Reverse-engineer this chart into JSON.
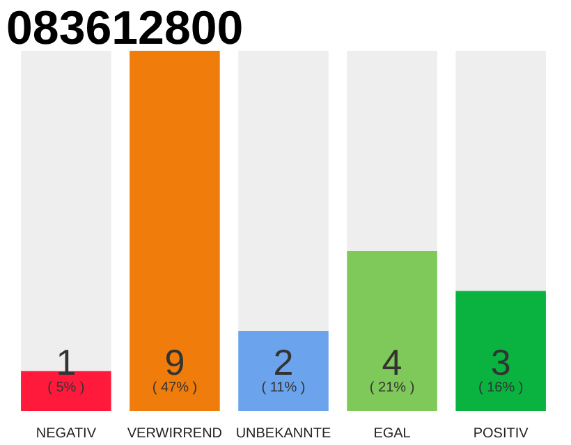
{
  "chart_data": {
    "type": "bar",
    "title": "083612800",
    "stacked": true,
    "categories": [
      "NEGATIV",
      "VERWIRREND",
      "UNBEKANNTE",
      "EGAL",
      "POSITIV"
    ],
    "series": [
      {
        "colors": [
          "#ff1a3c",
          "#f07c0c",
          "#6ba3ec",
          "#7ec95a",
          "#0ab240"
        ],
        "values": [
          1,
          9,
          2,
          4,
          3
        ],
        "value_labels": [
          "1",
          "9",
          "2",
          "4",
          "3"
        ]
      },
      {
        "color": "#eeeeee",
        "values": [
          8,
          0,
          7,
          5,
          6
        ]
      }
    ],
    "annotations": [
      {
        "text": "( 5% )",
        "x": "NEGATIV",
        "y": 0
      },
      {
        "text": "( 47% )",
        "x": "VERWIRREND",
        "y": 0
      },
      {
        "text": "( 11% )",
        "x": "UNBEKANNTE",
        "y": 0
      },
      {
        "text": "( 21% )",
        "x": "EGAL",
        "y": 0
      },
      {
        "text": "( 16% )",
        "x": "POSITIV",
        "y": 0
      }
    ],
    "grid": false
  }
}
